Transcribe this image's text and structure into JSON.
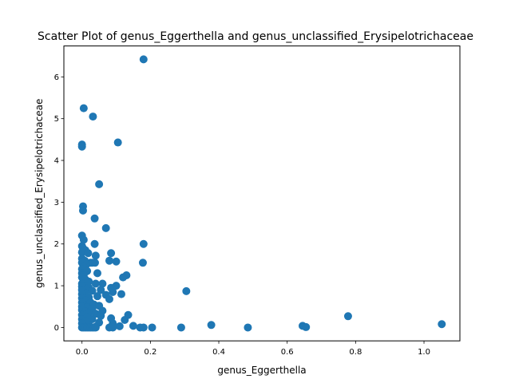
{
  "chart_data": {
    "type": "scatter",
    "title": "Scatter Plot of genus_Eggerthella and genus_unclassified_Erysipelotrichaceae",
    "xlabel": "genus_Eggerthella",
    "ylabel": "genus_unclassified_Erysipelotrichaceae",
    "xlim": [
      -0.053,
      1.105
    ],
    "ylim": [
      -0.32,
      6.74
    ],
    "xticks": [
      0.0,
      0.2,
      0.4,
      0.6,
      0.8,
      1.0
    ],
    "xtick_labels": [
      "0.0",
      "0.2",
      "0.4",
      "0.6",
      "0.8",
      "1.0"
    ],
    "yticks": [
      0,
      1,
      2,
      3,
      4,
      5,
      6
    ],
    "ytick_labels": [
      "0",
      "1",
      "2",
      "3",
      "4",
      "5",
      "6"
    ],
    "grid": false,
    "legend": "none",
    "marker_color": "#1f77b4",
    "points": [
      [
        0.18,
        6.42
      ],
      [
        0.005,
        5.25
      ],
      [
        0.032,
        5.05
      ],
      [
        0.0,
        4.38
      ],
      [
        0.0,
        4.33
      ],
      [
        0.105,
        4.43
      ],
      [
        0.05,
        3.43
      ],
      [
        0.003,
        2.9
      ],
      [
        0.003,
        2.8
      ],
      [
        0.037,
        2.61
      ],
      [
        0.07,
        2.38
      ],
      [
        0.0,
        2.2
      ],
      [
        0.005,
        2.1
      ],
      [
        0.037,
        2.0
      ],
      [
        0.18,
        2.0
      ],
      [
        0.0,
        1.95
      ],
      [
        0.003,
        1.9
      ],
      [
        0.01,
        1.85
      ],
      [
        0.0,
        1.8
      ],
      [
        0.018,
        1.78
      ],
      [
        0.085,
        1.78
      ],
      [
        0.04,
        1.72
      ],
      [
        0.0,
        1.65
      ],
      [
        0.008,
        1.6
      ],
      [
        0.08,
        1.6
      ],
      [
        0.1,
        1.58
      ],
      [
        0.178,
        1.55
      ],
      [
        0.0,
        1.55
      ],
      [
        0.025,
        1.55
      ],
      [
        0.03,
        1.55
      ],
      [
        0.038,
        1.55
      ],
      [
        0.012,
        1.5
      ],
      [
        0.005,
        1.45
      ],
      [
        0.0,
        1.4
      ],
      [
        0.015,
        1.35
      ],
      [
        0.045,
        1.3
      ],
      [
        0.0,
        1.3
      ],
      [
        0.005,
        1.25
      ],
      [
        0.13,
        1.25
      ],
      [
        0.12,
        1.2
      ],
      [
        0.0,
        1.2
      ],
      [
        0.01,
        1.15
      ],
      [
        0.02,
        1.1
      ],
      [
        0.0,
        1.05
      ],
      [
        0.04,
        1.05
      ],
      [
        0.06,
        1.05
      ],
      [
        0.005,
        1.0
      ],
      [
        0.1,
        1.0
      ],
      [
        0.0,
        0.98
      ],
      [
        0.085,
        0.95
      ],
      [
        0.02,
        0.95
      ],
      [
        0.055,
        0.9
      ],
      [
        0.0,
        0.9
      ],
      [
        0.03,
        0.88
      ],
      [
        0.305,
        0.87
      ],
      [
        0.09,
        0.85
      ],
      [
        0.01,
        0.82
      ],
      [
        0.115,
        0.8
      ],
      [
        0.07,
        0.78
      ],
      [
        0.0,
        0.8
      ],
      [
        0.045,
        0.75
      ],
      [
        0.02,
        0.72
      ],
      [
        0.0,
        0.7
      ],
      [
        0.08,
        0.68
      ],
      [
        0.01,
        0.65
      ],
      [
        0.025,
        0.6
      ],
      [
        0.0,
        0.6
      ],
      [
        0.035,
        0.55
      ],
      [
        0.05,
        0.52
      ],
      [
        0.0,
        0.5
      ],
      [
        0.015,
        0.48
      ],
      [
        0.03,
        0.45
      ],
      [
        0.0,
        0.42
      ],
      [
        0.06,
        0.4
      ],
      [
        0.01,
        0.38
      ],
      [
        0.02,
        0.35
      ],
      [
        0.04,
        0.33
      ],
      [
        0.135,
        0.3
      ],
      [
        0.0,
        0.3
      ],
      [
        0.055,
        0.28
      ],
      [
        0.778,
        0.27
      ],
      [
        0.015,
        0.25
      ],
      [
        0.085,
        0.22
      ],
      [
        0.03,
        0.2
      ],
      [
        0.0,
        0.2
      ],
      [
        0.125,
        0.18
      ],
      [
        0.01,
        0.15
      ],
      [
        0.05,
        0.12
      ],
      [
        0.09,
        0.1
      ],
      [
        0.0,
        0.1
      ],
      [
        1.052,
        0.08
      ],
      [
        0.378,
        0.06
      ],
      [
        0.02,
        0.06
      ],
      [
        0.645,
        0.04
      ],
      [
        0.15,
        0.04
      ],
      [
        0.11,
        0.03
      ],
      [
        0.04,
        0.02
      ],
      [
        0.655,
        0.01
      ],
      [
        0.0,
        0.0
      ],
      [
        0.005,
        0.0
      ],
      [
        0.01,
        0.0
      ],
      [
        0.015,
        0.0
      ],
      [
        0.02,
        0.0
      ],
      [
        0.025,
        0.0
      ],
      [
        0.03,
        0.0
      ],
      [
        0.035,
        0.0
      ],
      [
        0.04,
        0.0
      ],
      [
        0.08,
        0.0
      ],
      [
        0.09,
        0.0
      ],
      [
        0.17,
        0.0
      ],
      [
        0.18,
        0.0
      ],
      [
        0.205,
        0.0
      ],
      [
        0.29,
        0.0
      ],
      [
        0.485,
        0.0
      ]
    ]
  }
}
